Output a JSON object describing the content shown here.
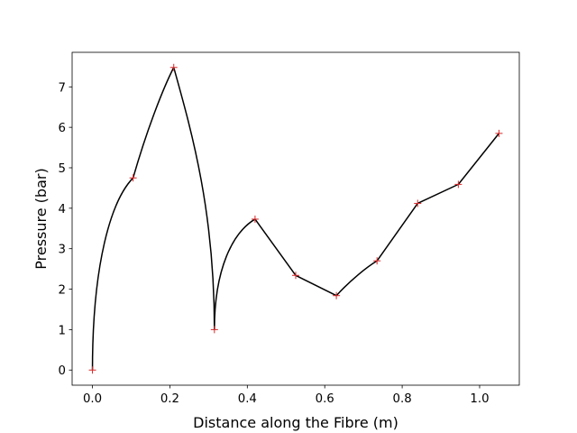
{
  "chart_data": {
    "type": "line",
    "title": "",
    "xlabel": "Distance along the Fibre (m)",
    "ylabel": "Pressure (bar)",
    "xlim": [
      -0.0525,
      1.1025
    ],
    "ylim": [
      -0.374,
      7.854
    ],
    "grid": false,
    "xticks": [
      0.0,
      0.2,
      0.4,
      0.6,
      0.8,
      1.0
    ],
    "xtick_labels": [
      "0.0",
      "0.2",
      "0.4",
      "0.6",
      "0.8",
      "1.0"
    ],
    "yticks": [
      0,
      1,
      2,
      3,
      4,
      5,
      6,
      7
    ],
    "ytick_labels": [
      "0",
      "1",
      "2",
      "3",
      "4",
      "5",
      "6",
      "7"
    ],
    "points": {
      "x": [
        0.0,
        0.105,
        0.21,
        0.315,
        0.42,
        0.525,
        0.63,
        0.735,
        0.84,
        0.945,
        1.05
      ],
      "y": [
        0.0,
        4.75,
        7.48,
        1.0,
        3.73,
        2.34,
        1.84,
        2.7,
        4.12,
        4.59,
        5.85
      ]
    },
    "marker_color": "#d62728",
    "line_color": "#000000"
  }
}
